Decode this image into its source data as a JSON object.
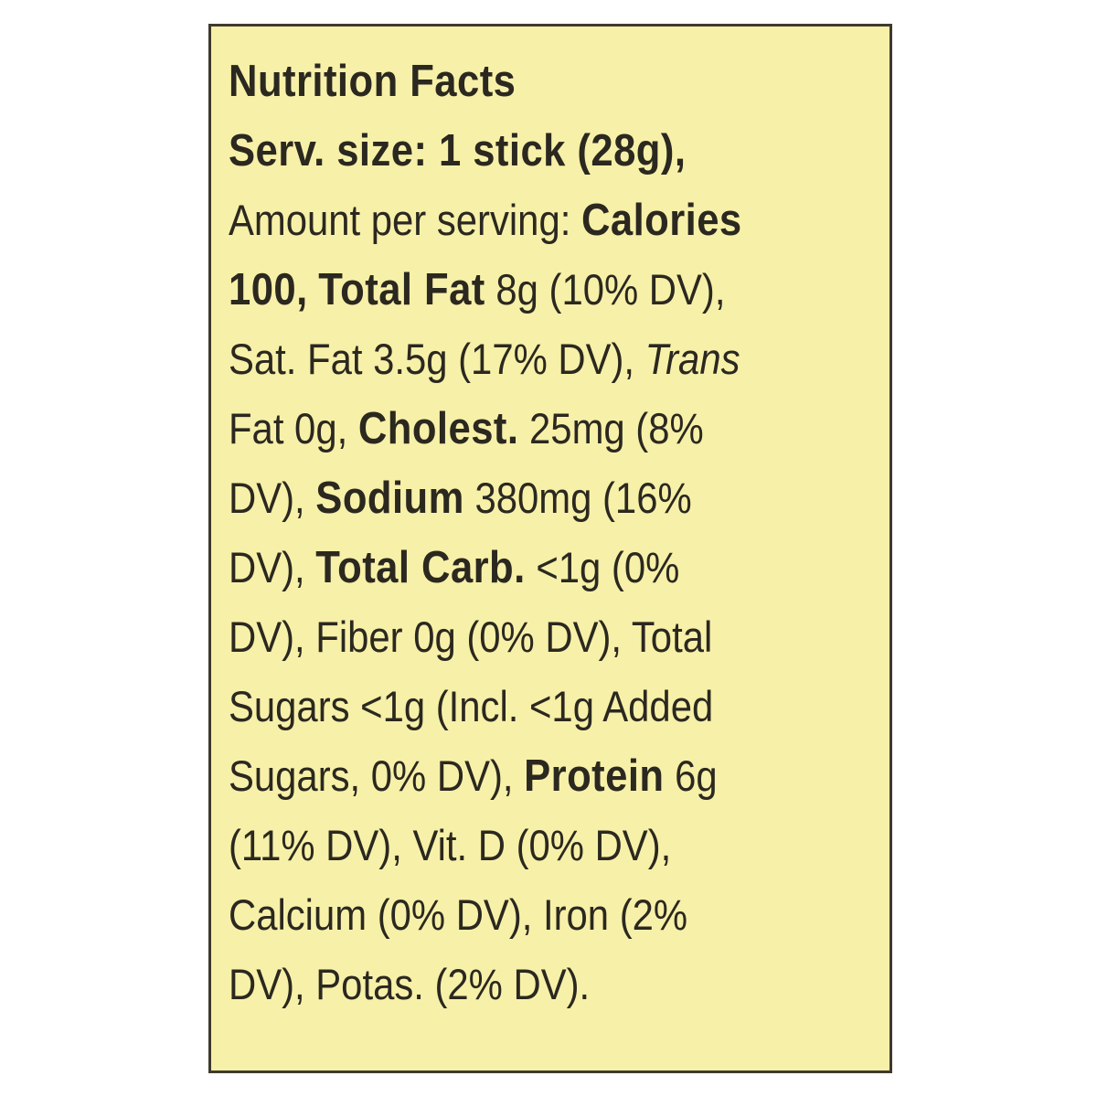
{
  "label": {
    "title": "Nutrition Facts",
    "serving_size": "Serv. size: 1 stick (28g),",
    "amount_per_serving": "Amount per serving: ",
    "calories_label": "Calories",
    "calories_value": "100,",
    "total_fat_label": "Total Fat",
    "total_fat_value": " 8g (10% DV),",
    "sat_fat": "Sat. Fat 3.5g (17% DV), ",
    "trans_label": "Trans",
    "trans_value": "Fat 0g, ",
    "cholest_label": "Cholest.",
    "cholest_value": " 25mg (8%",
    "cholest_dv_tail": "DV), ",
    "sodium_label": "Sodium",
    "sodium_value": " 380mg (16%",
    "sodium_dv_tail": "DV), ",
    "carb_label": "Total Carb.",
    "carb_value": " <1g (0%",
    "fiber_line": "DV), Fiber 0g (0% DV), Total",
    "sugars_line": "Sugars <1g (Incl. <1g Added",
    "added_sugars_value": "Sugars, 0% DV), ",
    "protein_label": "Protein",
    "protein_value": " 6g",
    "vit_d_line": "(11% DV), Vit. D (0% DV),",
    "calcium_line": "Calcium (0% DV), Iron (2%",
    "potassium_line": "DV), Potas. (2% DV)."
  },
  "colors": {
    "panel_background": "#f7f0a8",
    "text": "#2b2820",
    "border": "#3f3a2d"
  }
}
